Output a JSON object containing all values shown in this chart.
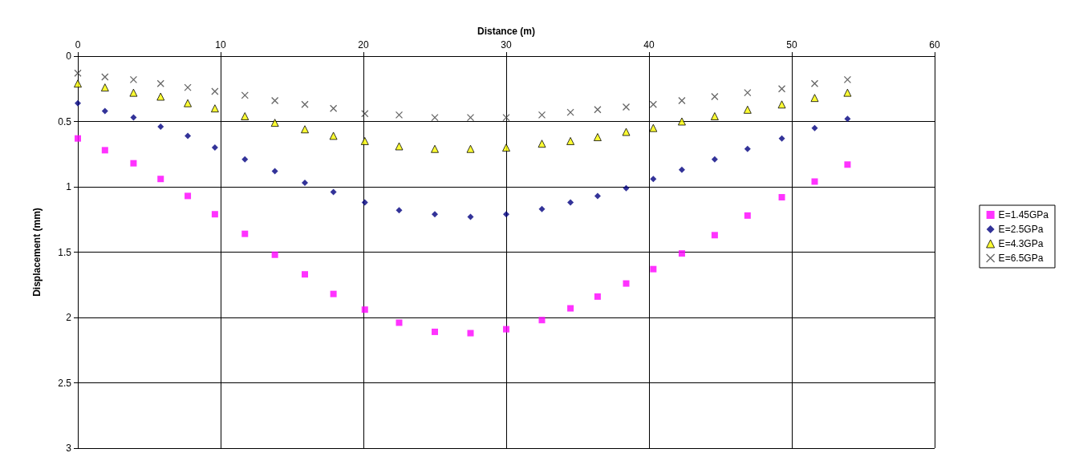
{
  "chart_data": {
    "type": "scatter",
    "xlabel": "Distance (m)",
    "ylabel": "Displacement (mm)",
    "x": [
      0,
      1.9,
      3.9,
      5.8,
      7.7,
      9.6,
      11.7,
      13.8,
      15.9,
      17.9,
      20.1,
      22.5,
      25.0,
      27.5,
      30.0,
      32.5,
      34.5,
      36.4,
      38.4,
      40.3,
      42.3,
      44.6,
      46.9,
      49.3,
      51.6,
      53.9
    ],
    "xlim": [
      0,
      60
    ],
    "xticks": [
      0,
      10,
      20,
      30,
      40,
      50,
      60
    ],
    "ylim": [
      3,
      0
    ],
    "yticks": [
      0,
      0.5,
      1,
      1.5,
      2,
      2.5,
      3
    ],
    "grid": true,
    "legend": "right",
    "series": [
      {
        "name": "E=1.45GPa",
        "color": "#ff00ff",
        "marker": "square",
        "values": [
          0.63,
          0.72,
          0.82,
          0.94,
          1.07,
          1.21,
          1.36,
          1.52,
          1.67,
          1.82,
          1.94,
          2.04,
          2.11,
          2.12,
          2.09,
          2.02,
          1.93,
          1.84,
          1.74,
          1.63,
          1.51,
          1.37,
          1.22,
          1.08,
          0.96,
          0.83
        ]
      },
      {
        "name": "E=2.5GPa",
        "color": "#000080",
        "marker": "diamond",
        "values": [
          0.36,
          0.42,
          0.47,
          0.54,
          0.61,
          0.7,
          0.79,
          0.88,
          0.97,
          1.04,
          1.12,
          1.18,
          1.21,
          1.23,
          1.21,
          1.17,
          1.12,
          1.07,
          1.01,
          0.94,
          0.87,
          0.79,
          0.71,
          0.63,
          0.55,
          0.48
        ]
      },
      {
        "name": "E=4.3GPa",
        "color": "#ffff00",
        "marker": "triangle",
        "values": [
          0.21,
          0.24,
          0.28,
          0.31,
          0.36,
          0.4,
          0.46,
          0.51,
          0.56,
          0.61,
          0.65,
          0.69,
          0.71,
          0.71,
          0.7,
          0.67,
          0.65,
          0.62,
          0.58,
          0.55,
          0.5,
          0.46,
          0.41,
          0.37,
          0.32,
          0.28
        ]
      },
      {
        "name": "E=6.5GPa",
        "color": "#404040",
        "marker": "cross",
        "values": [
          0.13,
          0.16,
          0.18,
          0.21,
          0.24,
          0.27,
          0.3,
          0.34,
          0.37,
          0.4,
          0.44,
          0.45,
          0.47,
          0.47,
          0.47,
          0.45,
          0.43,
          0.41,
          0.39,
          0.37,
          0.34,
          0.31,
          0.28,
          0.25,
          0.21,
          0.18
        ]
      }
    ]
  }
}
